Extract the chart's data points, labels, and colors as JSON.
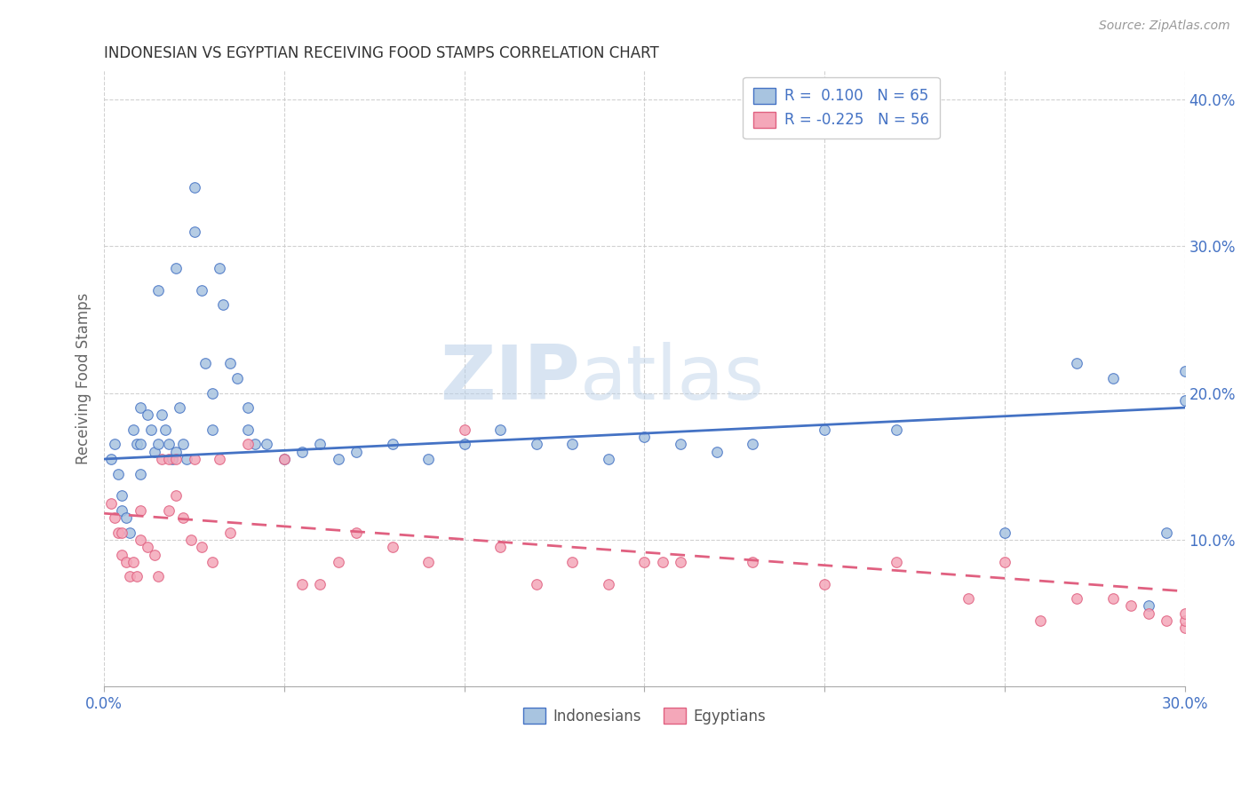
{
  "title": "INDONESIAN VS EGYPTIAN RECEIVING FOOD STAMPS CORRELATION CHART",
  "source": "Source: ZipAtlas.com",
  "ylabel": "Receiving Food Stamps",
  "xlim": [
    0.0,
    0.3
  ],
  "ylim": [
    0.0,
    0.42
  ],
  "xticks": [
    0.0,
    0.05,
    0.1,
    0.15,
    0.2,
    0.25,
    0.3
  ],
  "xtick_labels": [
    "0.0%",
    "",
    "",
    "",
    "",
    "",
    "30.0%"
  ],
  "yticks": [
    0.0,
    0.1,
    0.2,
    0.3,
    0.4
  ],
  "ytick_labels": [
    "",
    "10.0%",
    "20.0%",
    "30.0%",
    "40.0%"
  ],
  "r_indonesian": 0.1,
  "n_indonesian": 65,
  "r_egyptian": -0.225,
  "n_egyptian": 56,
  "color_indonesian": "#a8c4e0",
  "color_egyptian": "#f4a7b9",
  "line_color_indonesian": "#4472c4",
  "line_color_egyptian": "#e06080",
  "scatter_alpha": 0.85,
  "scatter_size": 70,
  "indonesian_x": [
    0.002,
    0.003,
    0.004,
    0.005,
    0.005,
    0.006,
    0.007,
    0.008,
    0.009,
    0.01,
    0.01,
    0.01,
    0.012,
    0.013,
    0.014,
    0.015,
    0.015,
    0.016,
    0.017,
    0.018,
    0.019,
    0.02,
    0.02,
    0.021,
    0.022,
    0.023,
    0.025,
    0.025,
    0.027,
    0.028,
    0.03,
    0.03,
    0.032,
    0.033,
    0.035,
    0.037,
    0.04,
    0.04,
    0.042,
    0.045,
    0.05,
    0.055,
    0.06,
    0.065,
    0.07,
    0.08,
    0.09,
    0.1,
    0.11,
    0.12,
    0.13,
    0.14,
    0.15,
    0.16,
    0.17,
    0.18,
    0.2,
    0.22,
    0.25,
    0.27,
    0.28,
    0.29,
    0.295,
    0.3,
    0.3
  ],
  "indonesian_y": [
    0.155,
    0.165,
    0.145,
    0.13,
    0.12,
    0.115,
    0.105,
    0.175,
    0.165,
    0.19,
    0.165,
    0.145,
    0.185,
    0.175,
    0.16,
    0.27,
    0.165,
    0.185,
    0.175,
    0.165,
    0.155,
    0.285,
    0.16,
    0.19,
    0.165,
    0.155,
    0.34,
    0.31,
    0.27,
    0.22,
    0.2,
    0.175,
    0.285,
    0.26,
    0.22,
    0.21,
    0.19,
    0.175,
    0.165,
    0.165,
    0.155,
    0.16,
    0.165,
    0.155,
    0.16,
    0.165,
    0.155,
    0.165,
    0.175,
    0.165,
    0.165,
    0.155,
    0.17,
    0.165,
    0.16,
    0.165,
    0.175,
    0.175,
    0.105,
    0.22,
    0.21,
    0.055,
    0.105,
    0.215,
    0.195
  ],
  "egyptian_x": [
    0.002,
    0.003,
    0.004,
    0.005,
    0.005,
    0.006,
    0.007,
    0.008,
    0.009,
    0.01,
    0.01,
    0.012,
    0.014,
    0.015,
    0.016,
    0.018,
    0.018,
    0.02,
    0.02,
    0.022,
    0.024,
    0.025,
    0.027,
    0.03,
    0.032,
    0.035,
    0.04,
    0.05,
    0.055,
    0.06,
    0.065,
    0.07,
    0.08,
    0.09,
    0.1,
    0.11,
    0.12,
    0.13,
    0.14,
    0.15,
    0.155,
    0.16,
    0.18,
    0.2,
    0.22,
    0.24,
    0.25,
    0.26,
    0.27,
    0.28,
    0.285,
    0.29,
    0.295,
    0.3,
    0.3,
    0.3
  ],
  "egyptian_y": [
    0.125,
    0.115,
    0.105,
    0.105,
    0.09,
    0.085,
    0.075,
    0.085,
    0.075,
    0.12,
    0.1,
    0.095,
    0.09,
    0.075,
    0.155,
    0.155,
    0.12,
    0.155,
    0.13,
    0.115,
    0.1,
    0.155,
    0.095,
    0.085,
    0.155,
    0.105,
    0.165,
    0.155,
    0.07,
    0.07,
    0.085,
    0.105,
    0.095,
    0.085,
    0.175,
    0.095,
    0.07,
    0.085,
    0.07,
    0.085,
    0.085,
    0.085,
    0.085,
    0.07,
    0.085,
    0.06,
    0.085,
    0.045,
    0.06,
    0.06,
    0.055,
    0.05,
    0.045,
    0.04,
    0.045,
    0.05
  ],
  "watermark_zip": "ZIP",
  "watermark_atlas": "atlas",
  "background_color": "#ffffff",
  "grid_color": "#cccccc"
}
